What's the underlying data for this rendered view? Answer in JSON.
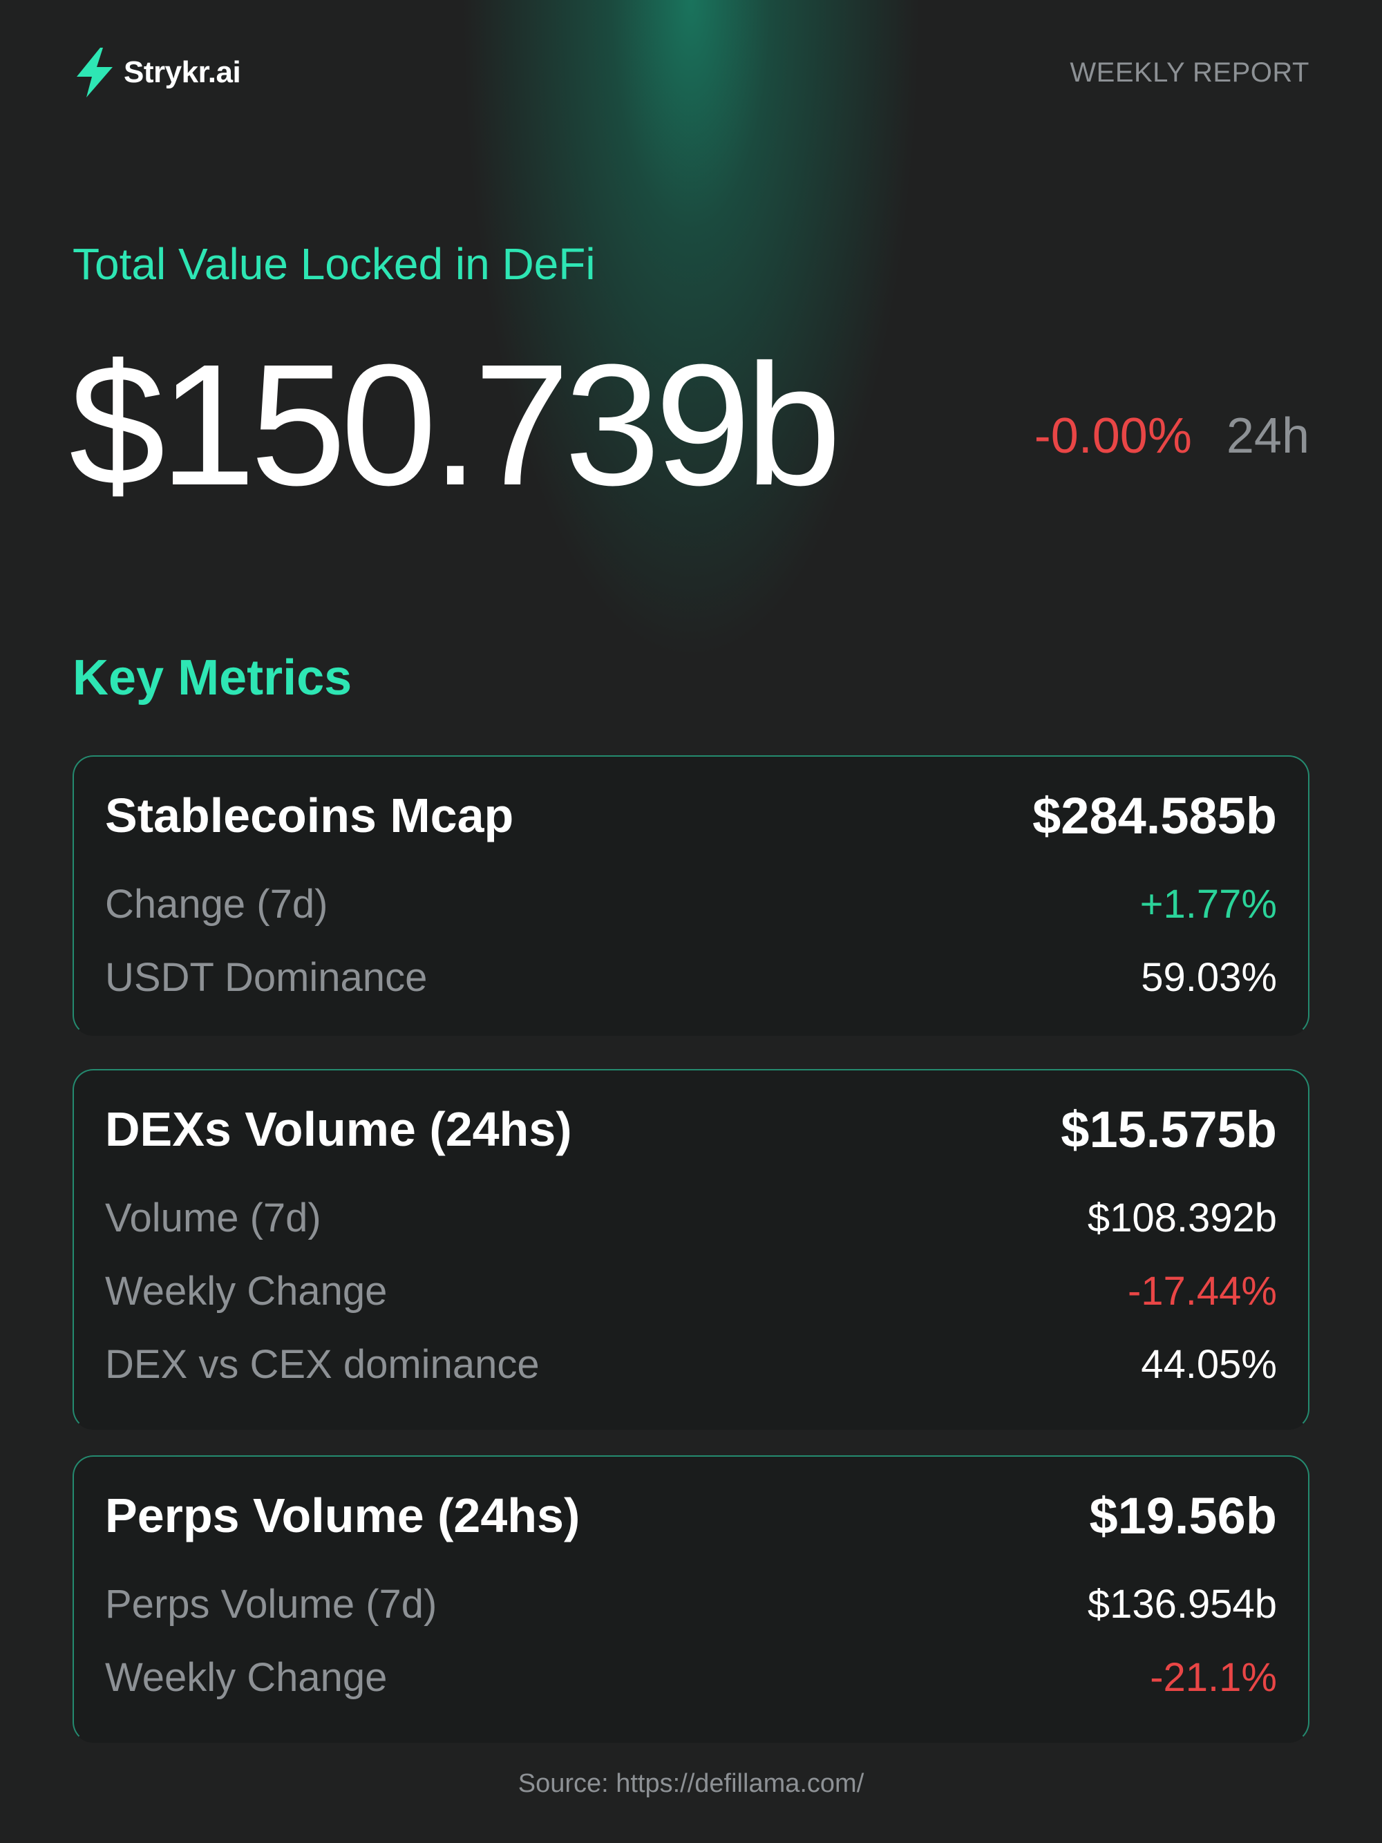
{
  "header": {
    "brand_name": "Strykr.ai",
    "report_label": "WEEKLY REPORT",
    "logo_icon": "lightning-bolt-icon"
  },
  "tvl": {
    "title": "Total Value Locked in DeFi",
    "value": "$150.739b",
    "change": "-0.00%",
    "period": "24h"
  },
  "key_metrics": {
    "title": "Key Metrics",
    "cards": [
      {
        "title": "Stablecoins Mcap",
        "value": "$284.585b",
        "rows": [
          {
            "label": "Change (7d)",
            "value": "+1.77%",
            "tone": "pos"
          },
          {
            "label": "USDT Dominance",
            "value": "59.03%",
            "tone": ""
          }
        ]
      },
      {
        "title": "DEXs Volume (24hs)",
        "value": "$15.575b",
        "rows": [
          {
            "label": "Volume  (7d)",
            "value": "$108.392b",
            "tone": ""
          },
          {
            "label": "Weekly Change",
            "value": "-17.44%",
            "tone": "neg"
          },
          {
            "label": "DEX vs CEX dominance",
            "value": "44.05%",
            "tone": ""
          }
        ]
      },
      {
        "title": "Perps Volume (24hs)",
        "value": "$19.56b",
        "rows": [
          {
            "label": "Perps Volume  (7d)",
            "value": "$136.954b",
            "tone": ""
          },
          {
            "label": "Weekly Change",
            "value": "-21.1%",
            "tone": "neg"
          }
        ]
      }
    ]
  },
  "footer": {
    "source": "Source: https://defillama.com/"
  },
  "colors": {
    "background": "#202121",
    "accent": "#2ee6b4",
    "positive": "#2bd49a",
    "negative": "#e94646",
    "muted": "#8d9195"
  }
}
